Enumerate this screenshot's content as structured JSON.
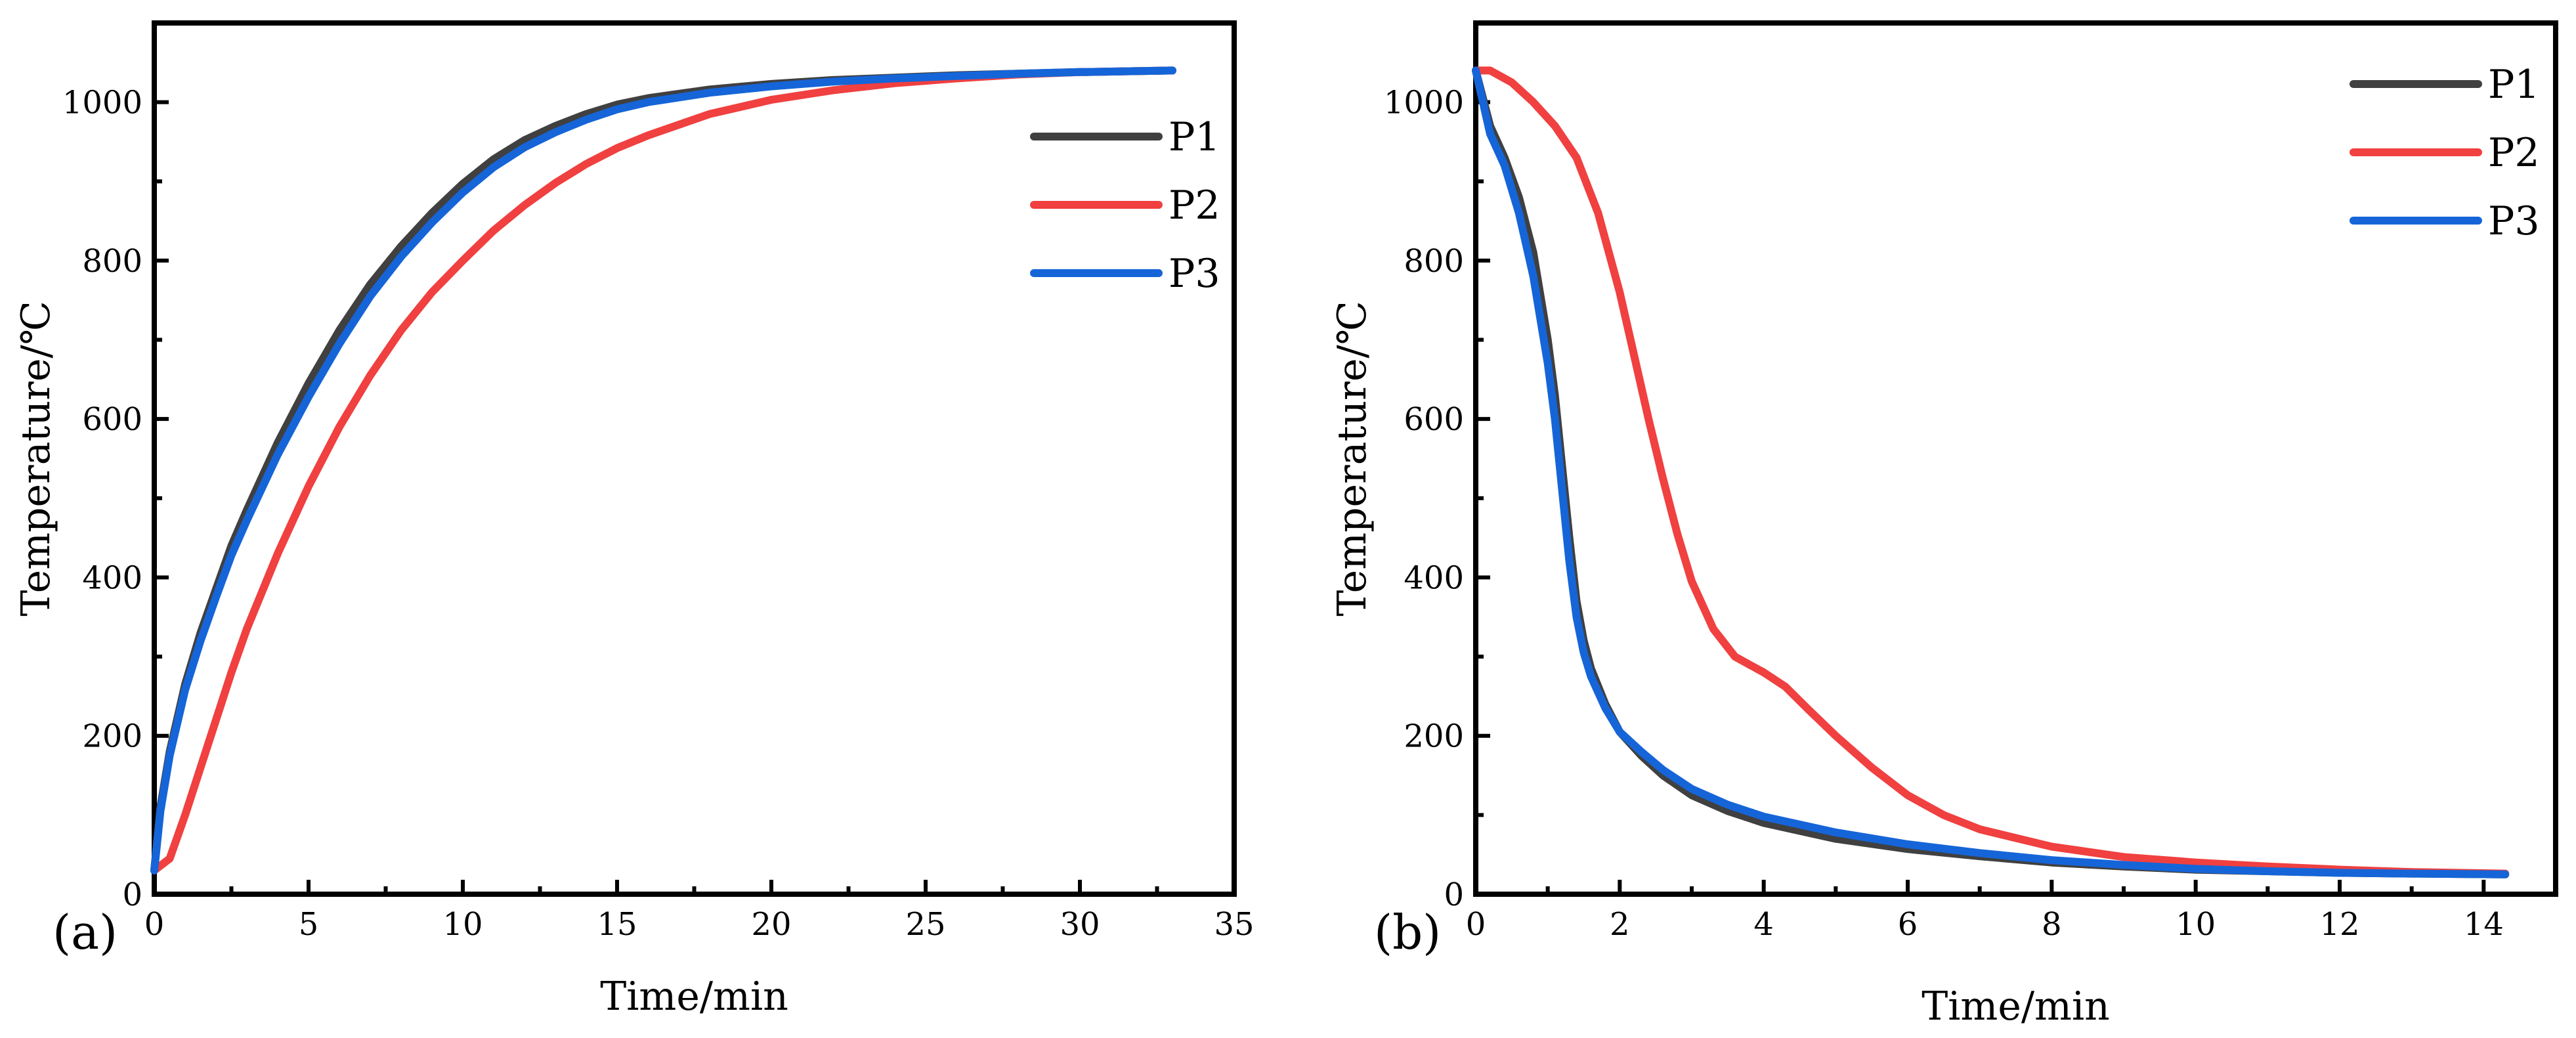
{
  "chart_data": [
    {
      "type": "line",
      "panel_label": "(a)",
      "xlabel": "Time/min",
      "ylabel": "Temperature/℃",
      "xlim": [
        0,
        35
      ],
      "ylim": [
        0,
        1100
      ],
      "xticks": [
        0,
        5,
        10,
        15,
        20,
        25,
        30,
        35
      ],
      "yticks": [
        0,
        200,
        400,
        600,
        800,
        1000
      ],
      "legend_position": "top-right",
      "series": [
        {
          "name": "P1",
          "color": "#404040",
          "x": [
            0,
            0.2,
            0.5,
            1,
            1.5,
            2,
            2.5,
            3,
            4,
            5,
            6,
            7,
            8,
            9,
            10,
            11,
            12,
            13,
            14,
            15,
            16,
            18,
            20,
            22,
            24,
            26,
            28,
            30,
            33
          ],
          "y": [
            30,
            110,
            180,
            265,
            330,
            385,
            440,
            485,
            570,
            645,
            712,
            770,
            818,
            860,
            897,
            928,
            952,
            970,
            985,
            997,
            1005,
            1016,
            1023,
            1028,
            1031,
            1034,
            1036,
            1038,
            1040
          ]
        },
        {
          "name": "P2",
          "color": "#f04040",
          "x": [
            0,
            0.5,
            1,
            1.5,
            2,
            2.5,
            3,
            4,
            5,
            6,
            7,
            8,
            9,
            10,
            11,
            12,
            13,
            14,
            15,
            16,
            18,
            20,
            22,
            24,
            26,
            28,
            30,
            33
          ],
          "y": [
            30,
            45,
            100,
            160,
            220,
            280,
            335,
            430,
            515,
            590,
            655,
            712,
            760,
            800,
            838,
            870,
            898,
            922,
            942,
            958,
            985,
            1003,
            1015,
            1024,
            1030,
            1035,
            1038,
            1040
          ]
        },
        {
          "name": "P3",
          "color": "#1565d8",
          "x": [
            0,
            0.2,
            0.5,
            1,
            1.5,
            2,
            2.5,
            3,
            4,
            5,
            6,
            7,
            8,
            9,
            10,
            11,
            12,
            13,
            14,
            15,
            16,
            18,
            20,
            22,
            24,
            26,
            28,
            30,
            33
          ],
          "y": [
            30,
            105,
            175,
            258,
            320,
            375,
            428,
            472,
            555,
            628,
            695,
            755,
            805,
            848,
            886,
            918,
            943,
            962,
            978,
            991,
            1000,
            1012,
            1020,
            1026,
            1030,
            1033,
            1036,
            1038,
            1040
          ]
        }
      ]
    },
    {
      "type": "line",
      "panel_label": "(b)",
      "xlabel": "Time/min",
      "ylabel": "Temperature/℃",
      "xlim": [
        0,
        15
      ],
      "ylim": [
        0,
        1100
      ],
      "xticks": [
        0,
        2,
        4,
        6,
        8,
        10,
        12,
        14
      ],
      "yticks": [
        0,
        200,
        400,
        600,
        800,
        1000
      ],
      "legend_position": "top-right",
      "series": [
        {
          "name": "P1",
          "color": "#404040",
          "x": [
            0,
            0.2,
            0.4,
            0.6,
            0.8,
            1.0,
            1.1,
            1.2,
            1.3,
            1.4,
            1.5,
            1.6,
            1.8,
            2.0,
            2.3,
            2.6,
            3.0,
            3.5,
            4.0,
            5.0,
            6.0,
            7.0,
            8.0,
            9.0,
            10.0,
            11.0,
            12.0,
            13.0,
            14.3
          ],
          "y": [
            1040,
            970,
            930,
            880,
            810,
            700,
            630,
            540,
            450,
            370,
            320,
            285,
            240,
            205,
            175,
            150,
            125,
            105,
            90,
            70,
            57,
            48,
            40,
            35,
            31,
            29,
            27,
            26,
            25
          ]
        },
        {
          "name": "P2",
          "color": "#f04040",
          "x": [
            0,
            0.2,
            0.5,
            0.8,
            1.1,
            1.4,
            1.7,
            2.0,
            2.2,
            2.4,
            2.6,
            2.8,
            3.0,
            3.3,
            3.6,
            3.8,
            4.0,
            4.3,
            4.6,
            5.0,
            5.5,
            6.0,
            6.5,
            7.0,
            8.0,
            9.0,
            10.0,
            11.0,
            12.0,
            13.0,
            14.3
          ],
          "y": [
            1040,
            1040,
            1025,
            1000,
            970,
            930,
            860,
            760,
            680,
            600,
            525,
            455,
            395,
            335,
            300,
            290,
            280,
            262,
            235,
            200,
            160,
            125,
            100,
            82,
            60,
            47,
            40,
            35,
            31,
            28,
            26
          ]
        },
        {
          "name": "P3",
          "color": "#1565d8",
          "x": [
            0,
            0.2,
            0.4,
            0.6,
            0.8,
            1.0,
            1.1,
            1.2,
            1.3,
            1.4,
            1.5,
            1.6,
            1.8,
            2.0,
            2.3,
            2.6,
            3.0,
            3.5,
            4.0,
            5.0,
            6.0,
            7.0,
            8.0,
            9.0,
            10.0,
            11.0,
            12.0,
            13.0,
            14.3
          ],
          "y": [
            1040,
            960,
            920,
            860,
            780,
            670,
            600,
            510,
            420,
            350,
            305,
            275,
            235,
            205,
            180,
            157,
            133,
            113,
            98,
            78,
            63,
            52,
            43,
            37,
            32,
            29,
            27,
            26,
            25
          ]
        }
      ]
    }
  ]
}
